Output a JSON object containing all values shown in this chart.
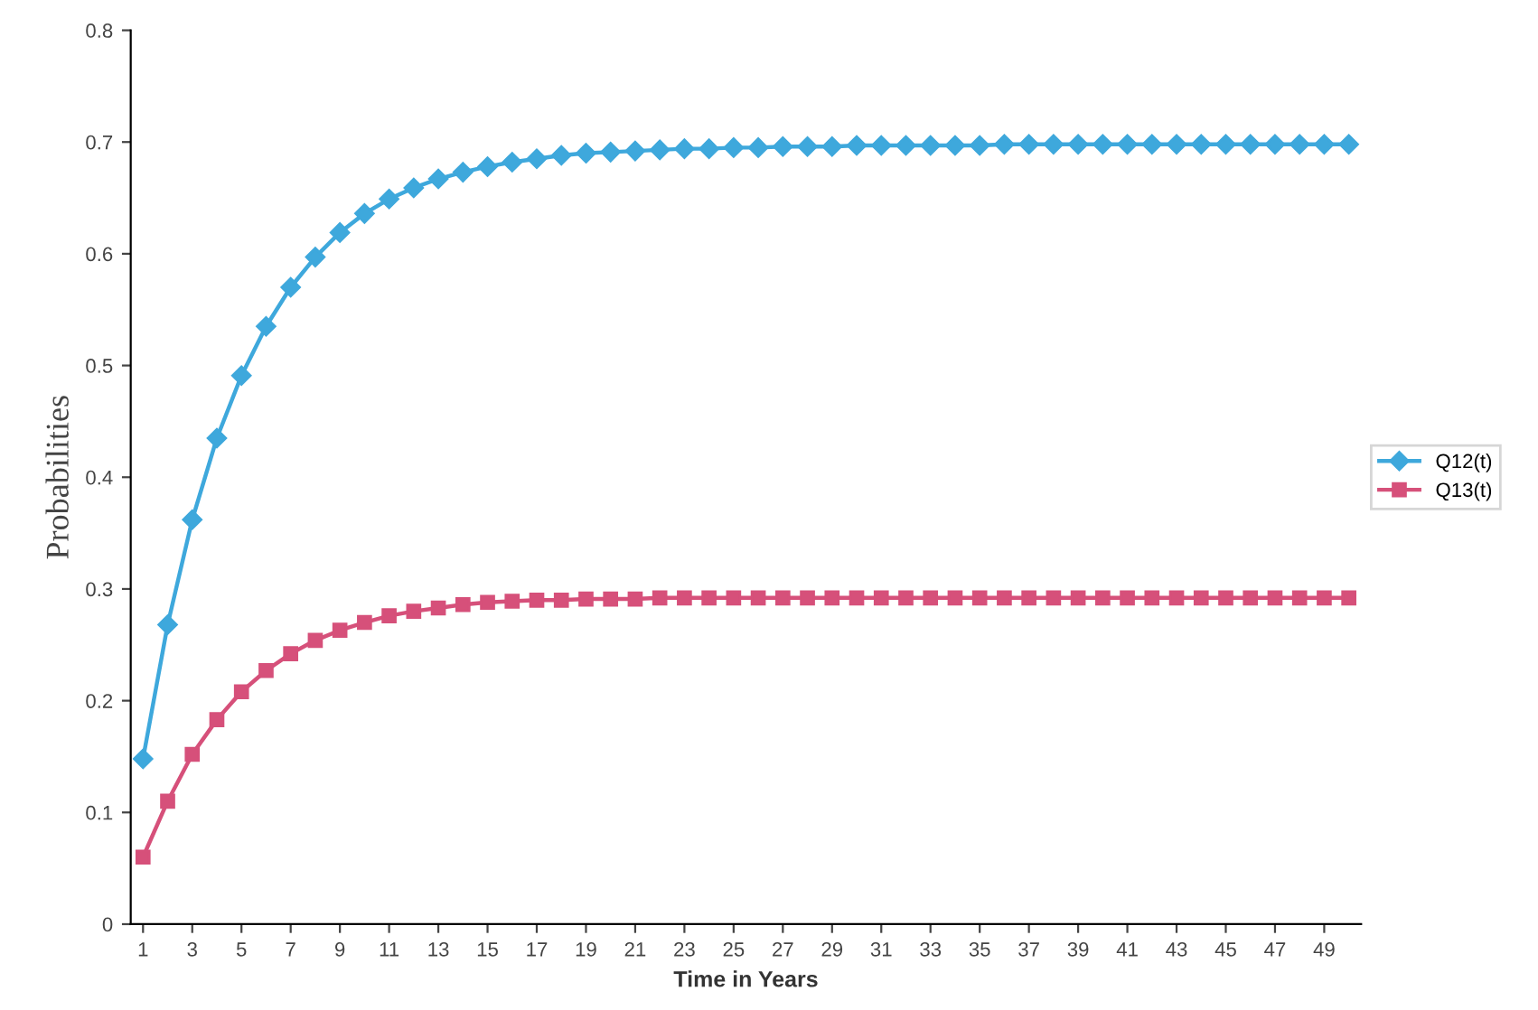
{
  "chart_data": {
    "type": "line",
    "xlabel": "Time in Years",
    "ylabel": "Probabilities",
    "x": [
      1,
      2,
      3,
      4,
      5,
      6,
      7,
      8,
      9,
      10,
      11,
      12,
      13,
      14,
      15,
      16,
      17,
      18,
      19,
      20,
      21,
      22,
      23,
      24,
      25,
      26,
      27,
      28,
      29,
      30,
      31,
      32,
      33,
      34,
      35,
      36,
      37,
      38,
      39,
      40,
      41,
      42,
      43,
      44,
      45,
      46,
      47,
      48,
      49,
      50
    ],
    "xlim": [
      0.5,
      50.5
    ],
    "xticks": [
      1,
      3,
      5,
      7,
      9,
      11,
      13,
      15,
      17,
      19,
      21,
      23,
      25,
      27,
      29,
      31,
      33,
      35,
      37,
      39,
      41,
      43,
      45,
      47,
      49
    ],
    "ylim": [
      0,
      0.8
    ],
    "yticks": [
      0,
      0.1,
      0.2,
      0.3,
      0.4,
      0.5,
      0.6,
      0.7,
      0.8
    ],
    "grid": false,
    "legend": "right",
    "line_style": "solid",
    "series": [
      {
        "name": "Q12(t)",
        "color": "#3ea8dc",
        "marker": "diamond",
        "values": [
          0.148,
          0.268,
          0.362,
          0.435,
          0.491,
          0.535,
          0.57,
          0.597,
          0.619,
          0.636,
          0.649,
          0.659,
          0.667,
          0.673,
          0.678,
          0.682,
          0.685,
          0.688,
          0.69,
          0.691,
          0.692,
          0.693,
          0.694,
          0.694,
          0.695,
          0.695,
          0.696,
          0.696,
          0.696,
          0.697,
          0.697,
          0.697,
          0.697,
          0.697,
          0.697,
          0.698,
          0.698,
          0.698,
          0.698,
          0.698,
          0.698,
          0.698,
          0.698,
          0.698,
          0.698,
          0.698,
          0.698,
          0.698,
          0.698,
          0.698
        ]
      },
      {
        "name": "Q13(t)",
        "color": "#d6507a",
        "marker": "square",
        "values": [
          0.06,
          0.11,
          0.152,
          0.183,
          0.208,
          0.227,
          0.242,
          0.254,
          0.263,
          0.27,
          0.276,
          0.28,
          0.283,
          0.286,
          0.288,
          0.289,
          0.29,
          0.29,
          0.291,
          0.291,
          0.291,
          0.292,
          0.292,
          0.292,
          0.292,
          0.292,
          0.292,
          0.292,
          0.292,
          0.292,
          0.292,
          0.292,
          0.292,
          0.292,
          0.292,
          0.292,
          0.292,
          0.292,
          0.292,
          0.292,
          0.292,
          0.292,
          0.292,
          0.292,
          0.292,
          0.292,
          0.292,
          0.292,
          0.292,
          0.292
        ]
      }
    ]
  }
}
